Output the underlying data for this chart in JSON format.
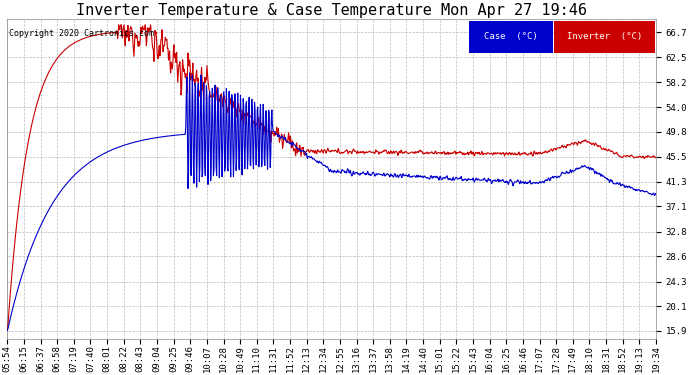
{
  "title": "Inverter Temperature & Case Temperature Mon Apr 27 19:46",
  "copyright": "Copyright 2020 Cartronics.com",
  "background_color": "#ffffff",
  "plot_bg_color": "#ffffff",
  "grid_color": "#bbbbbb",
  "grid_style": "--",
  "yticks": [
    15.9,
    20.1,
    24.3,
    28.6,
    32.8,
    37.1,
    41.3,
    45.5,
    49.8,
    54.0,
    58.2,
    62.5,
    66.7
  ],
  "ylim": [
    14.5,
    69.0
  ],
  "legend_case_label": "Case  (°C)",
  "legend_inverter_label": "Inverter  (°C)",
  "legend_case_color": "#0000cc",
  "legend_inverter_color": "#cc0000",
  "title_fontsize": 11,
  "tick_fontsize": 6.5,
  "line_width": 0.8,
  "xtick_labels": [
    "05:54",
    "06:15",
    "06:37",
    "06:58",
    "07:19",
    "07:40",
    "08:01",
    "08:22",
    "08:43",
    "09:04",
    "09:25",
    "09:46",
    "10:07",
    "10:28",
    "10:49",
    "11:10",
    "11:31",
    "11:52",
    "12:13",
    "12:34",
    "12:55",
    "13:16",
    "13:37",
    "13:58",
    "14:19",
    "14:40",
    "15:01",
    "15:22",
    "15:43",
    "16:04",
    "16:25",
    "16:46",
    "17:07",
    "17:28",
    "17:49",
    "18:10",
    "18:31",
    "18:52",
    "19:13",
    "19:34"
  ]
}
